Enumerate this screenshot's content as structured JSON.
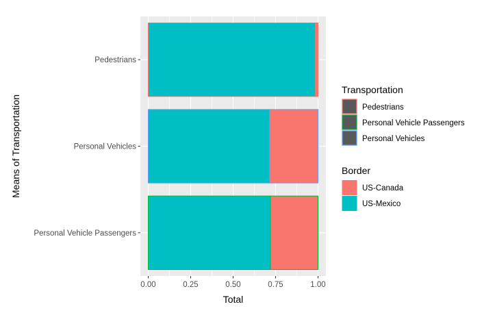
{
  "chart_data": {
    "type": "bar",
    "orientation": "horizontal",
    "position": "fill",
    "xlabel": "Total",
    "ylabel": "Means of Transportation",
    "xlim": [
      0,
      1
    ],
    "xticks": [
      0,
      0.25,
      0.5,
      0.75,
      1
    ],
    "xtick_labels": [
      "0.00",
      "0.25",
      "0.50",
      "0.75",
      "1.00"
    ],
    "categories": [
      "Pedestrians",
      "Personal Vehicles",
      "Personal Vehicle Passengers"
    ],
    "series": [
      {
        "name": "US-Mexico",
        "color": "#00BFC4",
        "values": [
          0.985,
          0.715,
          0.72
        ]
      },
      {
        "name": "US-Canada",
        "color": "#F8766D",
        "values": [
          0.015,
          0.285,
          0.28
        ]
      }
    ],
    "outline_colors": {
      "Pedestrians": "#F8766D",
      "Personal Vehicles": "#619CFF",
      "Personal Vehicle Passengers": "#00BA38"
    },
    "grid": true,
    "legend_position": "right",
    "legends": [
      {
        "title": "Transportation",
        "type": "outline",
        "entries": [
          {
            "label": "Pedestrians",
            "color": "#F8766D"
          },
          {
            "label": "Personal Vehicle Passengers",
            "color": "#00BA38"
          },
          {
            "label": "Personal Vehicles",
            "color": "#619CFF"
          }
        ]
      },
      {
        "title": "Border",
        "type": "fill",
        "entries": [
          {
            "label": "US-Canada",
            "color": "#F8766D"
          },
          {
            "label": "US-Mexico",
            "color": "#00BFC4"
          }
        ]
      }
    ],
    "panel_background": "#EBEBEB"
  }
}
